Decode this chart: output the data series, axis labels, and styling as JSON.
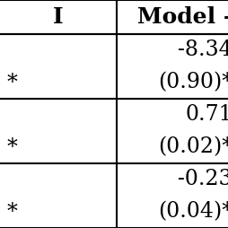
{
  "header_col1": "I",
  "header_col2": "Model -",
  "rows": [
    [
      "",
      "-8.34"
    ],
    [
      "*",
      "(0.90)*"
    ],
    [
      "",
      "0.71"
    ],
    [
      "*",
      "(0.02)*"
    ],
    [
      "",
      "-0.23"
    ],
    [
      "*",
      "(0.04)*"
    ]
  ],
  "bg_color": "#ffffff",
  "text_color": "#000000",
  "font_size": 17,
  "header_font_size": 18
}
